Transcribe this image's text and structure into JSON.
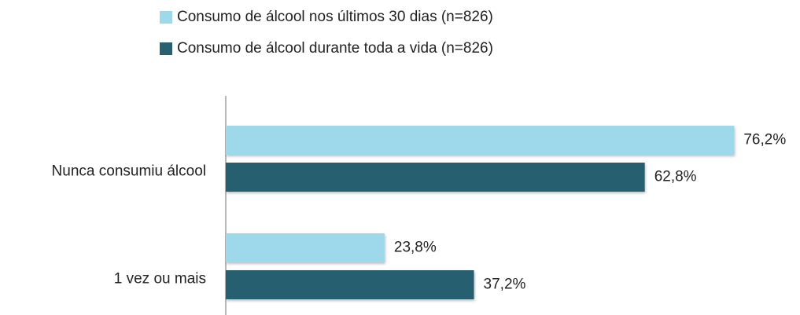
{
  "chart_data": {
    "type": "hbar",
    "categories": [
      "Nunca consumiu álcool",
      "1 vez ou mais"
    ],
    "series": [
      {
        "name": "Consumo de álcool nos últimos 30 dias (n=826)",
        "color": "#9dd9ea",
        "values": [
          76.2,
          23.8
        ],
        "value_labels": [
          "76,2%",
          "23,8%"
        ]
      },
      {
        "name": "Consumo de álcool durante toda a vida (n=826)",
        "color": "#27606f",
        "values": [
          62.8,
          37.2
        ],
        "value_labels": [
          "62,8%",
          "37,2%"
        ]
      }
    ],
    "xlim": [
      0,
      85
    ],
    "legend": "top"
  }
}
